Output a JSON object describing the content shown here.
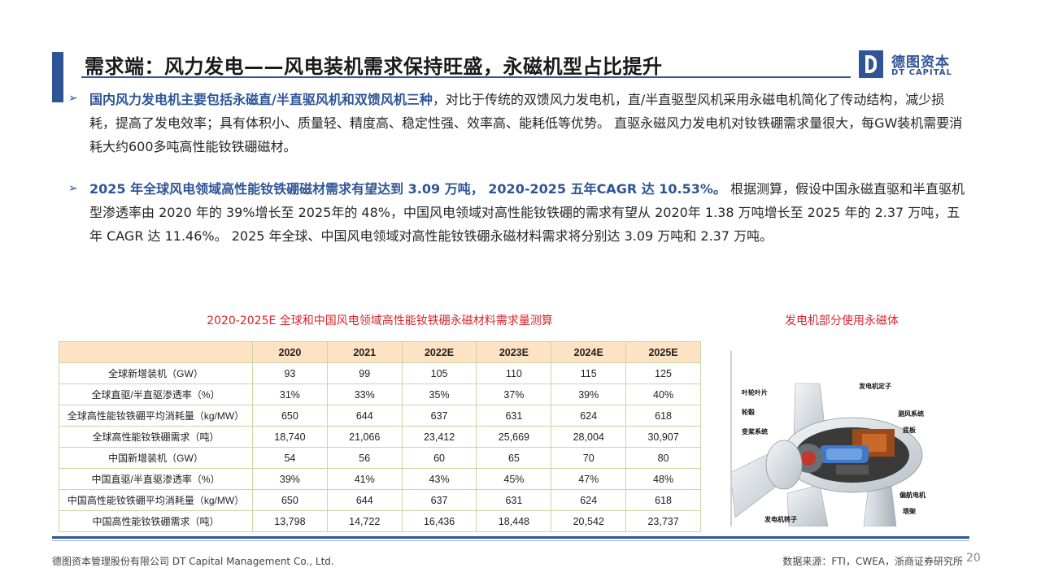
{
  "header": {
    "title": "需求端：风力发电——风电装机需求保持旺盛，永磁机型占比提升",
    "logo_cn": "德图资本",
    "logo_en": "DT CAPITAL"
  },
  "bullets": [
    {
      "highlight": "国内风力发电机主要包括永磁直/半直驱风机和双馈风机三种",
      "text": "，对比于传统的双馈风力发电机，直/半直驱型风机采用永磁电机简化了传动结构，减少损耗，提高了发电效率；具有体积小、质量轻、精度高、稳定性强、效率高、能耗低等优势。 直驱永磁风力发电机对钕铁硼需求量很大，每GW装机需要消耗大约600多吨高性能钕铁硼磁材。"
    },
    {
      "highlight": "2025 年全球风电领域高性能钕铁硼磁材需求有望达到 3.09 万吨， 2020-2025 五年CAGR 达 10.53%。",
      "text": " 根据测算，假设中国永磁直驱和半直驱机型渗透率由 2020 年的 39%增长至 2025年的 48%，中国风电领域对高性能钕铁硼的需求有望从 2020年 1.38 万吨增长至 2025 年的 2.37 万吨，五年 CAGR 达 11.46%。 2025 年全球、中国风电领域对高性能钕铁硼永磁材料需求将分别达 3.09 万吨和 2.37 万吨。"
    }
  ],
  "chart_data": {
    "type": "table",
    "title": "2020-2025E  全球和中国风电领域高性能钕铁硼永磁材料需求量测算",
    "columns": [
      "",
      "2020",
      "2021",
      "2022E",
      "2023E",
      "2024E",
      "2025E"
    ],
    "rows": [
      {
        "label": "全球新增装机（GW）",
        "values": [
          "93",
          "99",
          "105",
          "110",
          "115",
          "125"
        ]
      },
      {
        "label": "全球直驱/半直驱渗透率（%）",
        "values": [
          "31%",
          "33%",
          "35%",
          "37%",
          "39%",
          "40%"
        ]
      },
      {
        "label": "全球高性能钕铁硼平均消耗量（kg/MW）",
        "values": [
          "650",
          "644",
          "637",
          "631",
          "624",
          "618"
        ]
      },
      {
        "label": "全球高性能钕铁硼需求（吨）",
        "values": [
          "18,740",
          "21,066",
          "23,412",
          "25,669",
          "28,004",
          "30,907"
        ]
      },
      {
        "label": "中国新增装机（GW）",
        "values": [
          "54",
          "56",
          "60",
          "65",
          "70",
          "80"
        ]
      },
      {
        "label": "中国直驱/半直驱渗透率（%）",
        "values": [
          "39%",
          "41%",
          "43%",
          "45%",
          "47%",
          "48%"
        ]
      },
      {
        "label": "中国高性能钕铁硼平均消耗量（kg/MW）",
        "values": [
          "650",
          "644",
          "637",
          "631",
          "624",
          "618"
        ]
      },
      {
        "label": "中国高性能钕铁硼需求（吨）",
        "values": [
          "13,798",
          "14,722",
          "16,436",
          "18,448",
          "20,542",
          "23,737"
        ]
      }
    ]
  },
  "figure": {
    "title": "发电机部分使用永磁体",
    "labels": {
      "blade": "叶轮叶片",
      "hub": "轮毂",
      "pitch": "变桨系统",
      "stator": "发电机定子",
      "wind": "测风系统",
      "base": "底板",
      "yaw": "偏航电机",
      "tower": "塔架",
      "rotor": "发电机转子"
    }
  },
  "footer": {
    "company": "德图资本管理股份有限公司  DT Capital Management  Co., Ltd.",
    "source": "数据来源：FTI，CWEA，浙商证券研究所",
    "page": "20"
  },
  "colors": {
    "accent": "#2f5597",
    "red_caption": "#d6262c",
    "table_header": "#fde2c3",
    "table_border": "#c9d6a3"
  }
}
